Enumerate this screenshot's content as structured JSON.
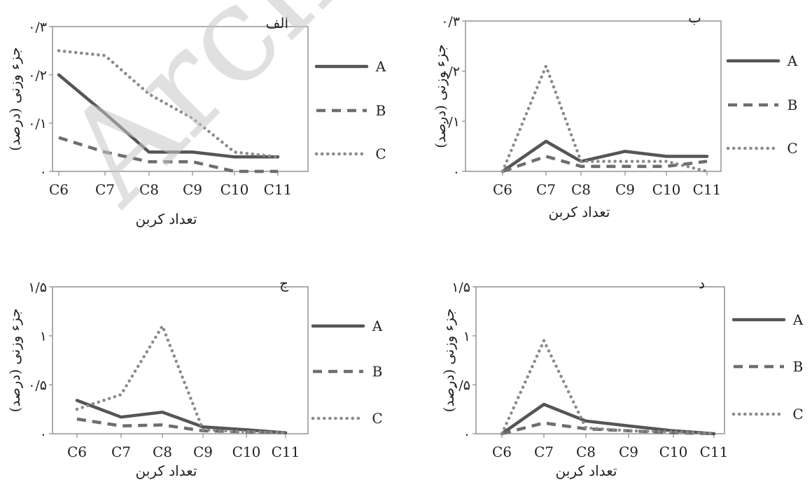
{
  "watermark": "Archi",
  "legend": [
    {
      "name": "A",
      "style": "solid"
    },
    {
      "name": "B",
      "style": "dashed"
    },
    {
      "name": "C",
      "style": "dotted"
    }
  ],
  "colors": {
    "A": "#555555",
    "B": "#6e6e6e",
    "C": "#8a8a8a",
    "axis": "#9a9a9a"
  },
  "chart_data": [
    {
      "type": "line",
      "title": "الف",
      "xlabel": "تعداد کربن",
      "ylabel": "جزء وزنی (درصد)",
      "categories": [
        "C6",
        "C7",
        "C8",
        "C9",
        "C10",
        "C11"
      ],
      "ylim": [
        0,
        0.3
      ],
      "yticks": [
        {
          "v": 0,
          "label": "۰"
        },
        {
          "v": 0.1,
          "label": "۰/۱"
        },
        {
          "v": 0.2,
          "label": "۰/۲"
        },
        {
          "v": 0.3,
          "label": "۰/۳"
        }
      ],
      "series": [
        {
          "name": "A",
          "values": [
            0.2,
            0.12,
            0.04,
            0.04,
            0.03,
            0.03
          ]
        },
        {
          "name": "B",
          "values": [
            0.07,
            0.04,
            0.02,
            0.02,
            0.0,
            0.0
          ]
        },
        {
          "name": "C",
          "values": [
            0.25,
            0.24,
            0.16,
            0.11,
            0.04,
            0.03
          ]
        }
      ]
    },
    {
      "type": "line",
      "title": "ب",
      "xlabel": "تعداد کربن",
      "ylabel": "جزء وزنی (درصد)",
      "categories": [
        "C6",
        "C7",
        "C8",
        "C9",
        "C10",
        "C11"
      ],
      "ylim": [
        0,
        0.3
      ],
      "yticks": [
        {
          "v": 0,
          "label": "۰"
        },
        {
          "v": 0.1,
          "label": "۰/۱"
        },
        {
          "v": 0.2,
          "label": "۰/۲"
        },
        {
          "v": 0.3,
          "label": "۰/۳"
        }
      ],
      "series": [
        {
          "name": "A",
          "values": [
            0.0,
            0.06,
            0.02,
            0.04,
            0.03,
            0.03
          ]
        },
        {
          "name": "B",
          "values": [
            0.0,
            0.03,
            0.01,
            0.01,
            0.01,
            0.02
          ]
        },
        {
          "name": "C",
          "values": [
            0.0,
            0.21,
            0.02,
            0.02,
            0.02,
            0.0
          ]
        }
      ]
    },
    {
      "type": "line",
      "title": "ج",
      "xlabel": "تعداد کربن",
      "ylabel": "جزء وزنی (درصد)",
      "categories": [
        "C6",
        "C7",
        "C8",
        "C9",
        "C10",
        "C11"
      ],
      "ylim": [
        0,
        1.5
      ],
      "yticks": [
        {
          "v": 0,
          "label": "۰"
        },
        {
          "v": 0.5,
          "label": "۰/۵"
        },
        {
          "v": 1,
          "label": "۱"
        },
        {
          "v": 1.5,
          "label": "۱/۵"
        }
      ],
      "series": [
        {
          "name": "A",
          "values": [
            0.34,
            0.17,
            0.22,
            0.07,
            0.04,
            0.01
          ]
        },
        {
          "name": "B",
          "values": [
            0.15,
            0.08,
            0.09,
            0.03,
            0.02,
            0.01
          ]
        },
        {
          "name": "C",
          "values": [
            0.25,
            0.4,
            1.1,
            0.04,
            0.02,
            0.01
          ]
        }
      ]
    },
    {
      "type": "line",
      "title": "د",
      "xlabel": "تعداد کربن",
      "ylabel": "جزء وزنی (درصد)",
      "categories": [
        "C6",
        "C7",
        "C8",
        "C9",
        "C10",
        "C11"
      ],
      "ylim": [
        0,
        1.5
      ],
      "yticks": [
        {
          "v": 0,
          "label": "۰"
        },
        {
          "v": 0.5,
          "label": "۰/۵"
        },
        {
          "v": 1,
          "label": "۱"
        },
        {
          "v": 1.5,
          "label": "۱/۵"
        }
      ],
      "series": [
        {
          "name": "A",
          "values": [
            0.0,
            0.3,
            0.13,
            0.08,
            0.03,
            0.0
          ]
        },
        {
          "name": "B",
          "values": [
            0.0,
            0.11,
            0.05,
            0.03,
            0.01,
            0.0
          ]
        },
        {
          "name": "C",
          "values": [
            0.0,
            0.95,
            0.06,
            0.03,
            0.02,
            0.0
          ]
        }
      ]
    }
  ]
}
